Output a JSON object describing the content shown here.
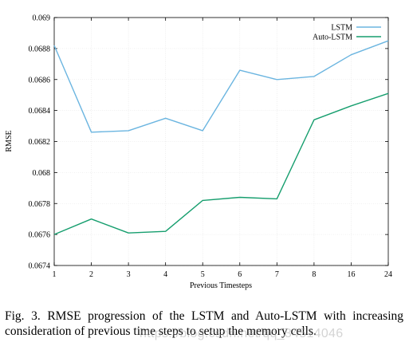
{
  "chart_data": {
    "type": "line",
    "categories": [
      "1",
      "2",
      "3",
      "4",
      "5",
      "6",
      "7",
      "8",
      "16",
      "24"
    ],
    "series": [
      {
        "name": "LSTM",
        "color": "#6bb5e0",
        "values": [
          0.06882,
          0.06826,
          0.06827,
          0.06835,
          0.06827,
          0.06866,
          0.0686,
          0.06862,
          0.06876,
          0.06885
        ]
      },
      {
        "name": "Auto-LSTM",
        "color": "#169e6e",
        "values": [
          0.0676,
          0.0677,
          0.06761,
          0.06762,
          0.06782,
          0.06784,
          0.06783,
          0.06834,
          0.06843,
          0.06851
        ]
      }
    ],
    "xlabel": "Previous Timesteps",
    "ylabel": "RMSE",
    "ylim": [
      0.0674,
      0.069
    ],
    "yticks": [
      0.0674,
      0.0676,
      0.0678,
      0.068,
      0.0682,
      0.0684,
      0.0686,
      0.0688,
      0.069
    ],
    "ytick_labels": [
      "0.0674",
      "0.0676",
      "0.0678",
      "0.068",
      "0.0682",
      "0.0684",
      "0.0686",
      "0.0688",
      "0.069"
    ],
    "grid": true,
    "legend_position": "top-right"
  },
  "caption": "Fig. 3.  RMSE progression of the LSTM and Auto-LSTM with increasing consideration of previous time steps to setup the memory cells.",
  "watermark": "https://blog.csdn.net/qq_34514046"
}
